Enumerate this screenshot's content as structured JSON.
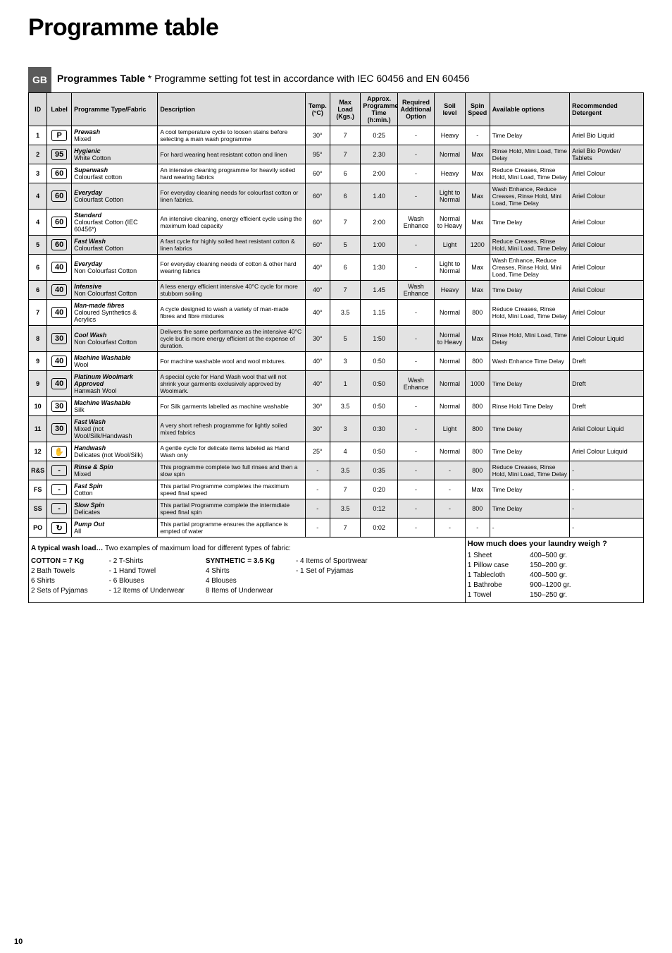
{
  "page_title": "Programme table",
  "badge": "GB",
  "subtitle_bold": "Programmes Table",
  "subtitle_rest": " * Programme setting fot test in accordance with IEC 60456 and EN 60456",
  "page_number": "10",
  "cols": {
    "id": "ID",
    "label": "Label",
    "type": "Programme Type/Fabric",
    "desc": "Description",
    "temp": "Temp. (°C)",
    "load": "Max Load (Kgs.)",
    "time": "Approx. Programme Time (h:min.)",
    "option": "Required Additional Option",
    "soil": "Soil level",
    "spin": "Spin Speed",
    "avail": "Available options",
    "det": "Recommended Detergent"
  },
  "col_widths": [
    "3%",
    "4%",
    "14%",
    "24%",
    "4%",
    "5%",
    "6%",
    "6%",
    "5%",
    "4%",
    "13%",
    "12%"
  ],
  "rows": [
    {
      "id": "1",
      "label": "P",
      "type": "<b><i>Prewash</i></b><br>Mixed",
      "desc": "A cool temperature cycle to loosen stains before selecting a main wash programme",
      "temp": "30°",
      "load": "7",
      "time": "0:25",
      "option": "-",
      "soil": "Heavy",
      "spin": "-",
      "avail": "Time Delay",
      "det": "Ariel Bio Liquid",
      "shade": false
    },
    {
      "id": "2",
      "label": "95",
      "type": "<b><i>Hygienic</i></b><br>White Cotton",
      "desc": "For hard wearing heat resistant cotton and linen",
      "temp": "95°",
      "load": "7",
      "time": "2.30",
      "option": "-",
      "soil": "Normal",
      "spin": "Max",
      "avail": "Rinse Hold, Mini Load, Time Delay",
      "det": "Ariel Bio Powder/ Tablets",
      "shade": true
    },
    {
      "id": "3",
      "label": "60",
      "type": "<b><i>Superwash</i></b><br>Colourfast cotton",
      "desc": "An intensive cleaning programme for heavily soiled hard wearing fabrics",
      "temp": "60°",
      "load": "6",
      "time": "2:00",
      "option": "-",
      "soil": "Heavy",
      "spin": "Max",
      "avail": "Reduce Creases, Rinse Hold, Mini Load, Time Delay",
      "det": "Ariel Colour",
      "shade": false
    },
    {
      "id": "4",
      "label": "60",
      "type": "<b><i>Everyday</i></b><br>Colourfast Cotton",
      "desc": "For everyday cleaning needs for colourfast cotton or linen fabrics.",
      "temp": "60°",
      "load": "6",
      "time": "1.40",
      "option": "-",
      "soil": "Light to Normal",
      "spin": "Max",
      "avail": "Wash Enhance, Reduce Creases, Rinse Hold, Mini Load, Time Delay",
      "det": "Ariel Colour",
      "shade": true
    },
    {
      "id": "4",
      "label": "60",
      "type": "<b><i>Standard</i></b><br>Colourfast Cotton (IEC 60456*)",
      "desc": "An intensive cleaning, energy efficient cycle using the maximum load capacity",
      "temp": "60°",
      "load": "7",
      "time": "2:00",
      "option": "Wash Enhance",
      "soil": "Normal to Heavy",
      "spin": "Max",
      "avail": "Time Delay",
      "det": "Ariel Colour",
      "shade": false
    },
    {
      "id": "5",
      "label": "60",
      "type": "<b><i>Fast Wash</i></b><br>Colourfast Cotton",
      "desc": "A fast cycle for highly soiled heat resistant cotton & linen fabrics",
      "temp": "60°",
      "load": "5",
      "time": "1:00",
      "option": "-",
      "soil": "Light",
      "spin": "1200",
      "avail": "Reduce Creases, Rinse Hold, Mini Load, Time Delay",
      "det": "Ariel Colour",
      "shade": true
    },
    {
      "id": "6",
      "label": "40",
      "type": "<b><i>Everyday</i></b><br>Non Colourfast Cotton",
      "desc": "For everyday cleaning needs of cotton & other hard wearing fabrics",
      "temp": "40°",
      "load": "6",
      "time": "1:30",
      "option": "-",
      "soil": "Light to Normal",
      "spin": "Max",
      "avail": "Wash Enhance, Reduce Creases, Rinse Hold, Mini Load, Time Delay",
      "det": "Ariel Colour",
      "shade": false
    },
    {
      "id": "6",
      "label": "40",
      "type": "<b><i>Intensive</i></b><br>Non Colourfast Cotton",
      "desc": "A less energy efficient intensive 40°C cycle for more stubborn soiling",
      "temp": "40°",
      "load": "7",
      "time": "1.45",
      "option": "Wash Enhance",
      "soil": "Heavy",
      "spin": "Max",
      "avail": "Time Delay",
      "det": "Ariel Colour",
      "shade": true
    },
    {
      "id": "7",
      "label": "40",
      "type": "<b><i>Man-made fibres</i></b><br>Coloured Synthetics & Acrylics",
      "desc": "A cycle designed to wash a variety of man-made fibres and fibre mixtures",
      "temp": "40°",
      "load": "3.5",
      "time": "1.15",
      "option": "-",
      "soil": "Normal",
      "spin": "800",
      "avail": "Reduce Creases, Rinse Hold, Mini Load, Time Delay",
      "det": "Ariel Colour",
      "shade": false
    },
    {
      "id": "8",
      "label": "30",
      "type": "<b><i>Cool Wash</i></b><br>Non Colourfast Cotton",
      "desc": "Delivers the same performance as the intensive 40°C cycle but is more energy efficient at the expense of duration.",
      "temp": "30°",
      "load": "5",
      "time": "1:50",
      "option": "-",
      "soil": "Normal to Heavy",
      "spin": "Max",
      "avail": "Rinse Hold, Mini Load, Time Delay",
      "det": "Ariel Colour Liquid",
      "shade": true
    },
    {
      "id": "9",
      "label": "40",
      "type": "<b><i>Machine Washable</i></b><br>Wool",
      "desc": "For machine washable wool and wool mixtures.",
      "temp": "40°",
      "load": "3",
      "time": "0:50",
      "option": "-",
      "soil": "Normal",
      "spin": "800",
      "avail": "Wash Enhance Time Delay",
      "det": "Dreft",
      "shade": false
    },
    {
      "id": "9",
      "label": "40",
      "type": "<b><i>Platinum Woolmark Approved</i></b><br>Hanwash Wool",
      "desc": "A special cycle for Hand Wash wool that will not shrink your garments exclusively approved by Woolmark.",
      "temp": "40°",
      "load": "1",
      "time": "0:50",
      "option": "Wash Enhance",
      "soil": "Normal",
      "spin": "1000",
      "avail": "Time Delay",
      "det": "Dreft",
      "shade": true
    },
    {
      "id": "10",
      "label": "30",
      "type": "<b><i>Machine Washable</i></b><br>Silk",
      "desc": "For Silk garments labelled as machine washable",
      "temp": "30°",
      "load": "3.5",
      "time": "0:50",
      "option": "-",
      "soil": "Normal",
      "spin": "800",
      "avail": "Rinse Hold Time Delay",
      "det": "Dreft",
      "shade": false
    },
    {
      "id": "11",
      "label": "30",
      "type": "<b><i>Fast Wash</i></b><br>Mixed (not Wool/Silk/Handwash",
      "desc": "A very short refresh programme for lightly soiled mixed fabrics",
      "temp": "30°",
      "load": "3",
      "time": "0:30",
      "option": "-",
      "soil": "Light",
      "spin": "800",
      "avail": "Time Delay",
      "det": "Ariel Colour Liquid",
      "shade": true
    },
    {
      "id": "12",
      "label": "✋",
      "type": "<b><i>Handwash</i></b><br>Delicates (not Wool/Silk)",
      "desc": "A gentle cycle for delicate items labeled as Hand Wash only",
      "temp": "25°",
      "load": "4",
      "time": "0:50",
      "option": "-",
      "soil": "Normal",
      "spin": "800",
      "avail": "Time Delay",
      "det": "Ariel Colour Luiquid",
      "shade": false
    },
    {
      "id": "R&S",
      "label": "-",
      "type": "<b><i>Rinse & Spin</i></b><br>Mixed",
      "desc": "This programme complete two full rinses and then a slow spin",
      "temp": "-",
      "load": "3.5",
      "time": "0:35",
      "option": "-",
      "soil": "-",
      "spin": "800",
      "avail": "Reduce Creases, Rinse Hold, Mini Load, Time Delay",
      "det": "-",
      "shade": true
    },
    {
      "id": "FS",
      "label": "-",
      "type": "<b><i>Fast Spin</i></b><br>Cotton",
      "desc": "This partial Programme completes the maximum speed final speed",
      "temp": "-",
      "load": "7",
      "time": "0:20",
      "option": "-",
      "soil": "-",
      "spin": "Max",
      "avail": "Time Delay",
      "det": "-",
      "shade": false
    },
    {
      "id": "SS",
      "label": "-",
      "type": "<b><i>Slow Spin</i></b><br>Delicates",
      "desc": "This partial Programme complete the intermdiate speed final spin",
      "temp": "-",
      "load": "3.5",
      "time": "0:12",
      "option": "-",
      "soil": "-",
      "spin": "800",
      "avail": "Time Delay",
      "det": "-",
      "shade": true
    },
    {
      "id": "PO",
      "label": "↻",
      "type": "<b><i>Pump Out</i></b><br>All",
      "desc": "This partial programme ensures the appliance is empted of water",
      "temp": "-",
      "load": "7",
      "time": "0:02",
      "option": "-",
      "soil": "-",
      "spin": "-",
      "avail": "-",
      "det": "-",
      "shade": false
    }
  ],
  "footer": {
    "lead": "A typical wash load…",
    "lead_rest": " Two examples of maximum load for different types of fabric:",
    "how_q": "How much does your laundry weigh ?",
    "col1_head": "COTTON = 7 Kg",
    "col1_lines": [
      "2 Bath Towels",
      "6 Shirts",
      "2 Sets of Pyjamas"
    ],
    "col1b_lines": [
      "- 2 T-Shirts",
      "- 1 Hand Towel",
      "- 6 Blouses",
      "- 12 Items of Underwear"
    ],
    "col2_head": "SYNTHETIC = 3.5 Kg",
    "col2_lines": [
      "4 Shirts",
      "4 Blouses",
      "8 Items of Underwear"
    ],
    "col2b_lines": [
      "- 4 Items of Sportrwear",
      "- 1 Set of Pyjamas"
    ],
    "col3_lines": [
      "1 Sheet",
      "1 Pillow case",
      "1 Tablecloth",
      "1 Bathrobe",
      "1 Towel"
    ],
    "col3_w": [
      "400–500 gr.",
      "150–200 gr.",
      "400–500 gr.",
      "900–1200 gr.",
      "150–250 gr."
    ]
  }
}
